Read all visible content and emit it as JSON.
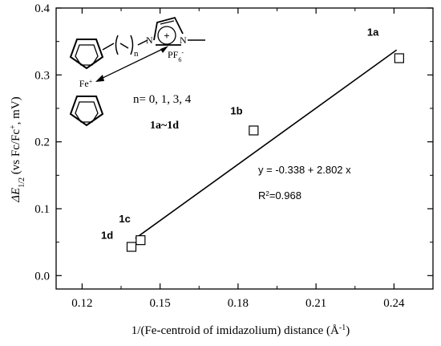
{
  "chart_data": {
    "type": "scatter",
    "xlabel": "1/(Fe-centroid of imidazolium) distance (Å",
    "xlabel_sup": "-1",
    "xlabel_close": ")",
    "ylabel_delta": "ΔE",
    "ylabel_sub": "1/2",
    "ylabel_rest": " (vs Fc/Fc",
    "ylabel_sup": "+",
    "ylabel_end": ", mV)",
    "xlim": [
      0.11,
      0.255
    ],
    "ylim": [
      -0.02,
      0.4
    ],
    "x_ticks": [
      "0.12",
      "0.15",
      "0.18",
      "0.21",
      "0.24"
    ],
    "y_ticks": [
      "0.0",
      "0.1",
      "0.2",
      "0.3",
      "0.4"
    ],
    "series": [
      {
        "points": [
          {
            "label": "1a",
            "x": 0.242,
            "y": 0.325
          },
          {
            "label": "1b",
            "x": 0.186,
            "y": 0.217
          },
          {
            "label": "1c",
            "x": 0.1425,
            "y": 0.053
          },
          {
            "label": "1d",
            "x": 0.139,
            "y": 0.043
          }
        ]
      }
    ],
    "fit": {
      "intercept": -0.338,
      "slope": 2.802,
      "x_range": [
        0.1405,
        0.241
      ],
      "equation": "y = -0.338 + 2.802 x",
      "r2_prefix": "R",
      "r2_sup": "2",
      "r2_value": "=0.968"
    }
  },
  "structure": {
    "n_label": "n",
    "n_values": "n= 0, 1, 3, 4",
    "series_range": "1a~1d",
    "fe_label": "Fe",
    "fe_charge": "+",
    "n_atom_1": "N",
    "n_atom_2": "N",
    "plus_sign": "+",
    "anion_prefix": "PF",
    "anion_sub": "6",
    "anion_sup": "-"
  }
}
